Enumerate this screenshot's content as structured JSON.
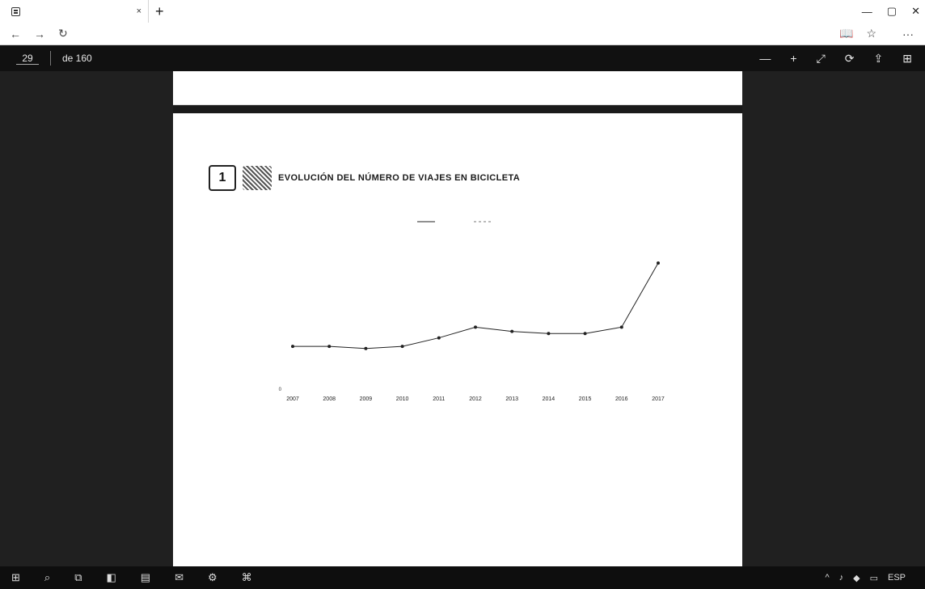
{
  "browser": {
    "tab_title": "",
    "tab_close": "×",
    "new_tab": "+",
    "url": "",
    "window_controls": {
      "minimize": "—",
      "maximize": "▢",
      "close": "✕"
    },
    "nav": {
      "back": "←",
      "forward": "→",
      "refresh": "↻"
    },
    "addr_icons": {
      "reading_view": "📖",
      "favorite": "☆"
    },
    "brand_text": "",
    "menu_dots": "···"
  },
  "pdf_viewer": {
    "current_page": "29",
    "page_total": "de 160",
    "title": "",
    "tools": {
      "zoom_out": "—",
      "zoom_in": "+",
      "fit": "⤢",
      "rotate": "⟳",
      "share": "⇪",
      "save": "⊞"
    }
  },
  "page": {
    "top_mark": "",
    "section_header": "",
    "figure": {
      "badge_label": "",
      "badge_number": "1",
      "title": "EVOLUCIÓN DEL NÚMERO DE VIAJES EN BICICLETA",
      "subtitle": ""
    },
    "source_label": "",
    "source_text": ""
  },
  "chart_data": {
    "type": "line",
    "title": "",
    "xlabel": "",
    "ylabel": "",
    "x": [
      "2007",
      "2008",
      "2009",
      "2010",
      "2011",
      "2012",
      "2013",
      "2014",
      "2015",
      "2016",
      "2017"
    ],
    "ylim": [
      0,
      350000
    ],
    "yticks": [
      "0",
      "",
      "",
      "",
      "",
      "",
      "",
      ""
    ],
    "series": [
      {
        "name": "",
        "color": "#222222",
        "dash": "none",
        "values": [
          100000,
          100000,
          95000,
          100000,
          120000,
          145000,
          135000,
          130000,
          130000,
          145000,
          295000
        ]
      },
      {
        "name": "",
        "color": "#777777",
        "dash": "3,3",
        "values": [
          null,
          null,
          null,
          null,
          null,
          null,
          null,
          null,
          null,
          null,
          null
        ]
      }
    ],
    "data_labels": [
      "",
      "",
      "",
      "",
      "",
      "",
      "",
      "",
      "",
      "",
      ""
    ],
    "grid": false,
    "legend": "top-center"
  },
  "taskbar": {
    "items": [
      "⊞",
      "⌕",
      "⧉",
      "◧",
      "▤",
      "✉",
      "⚙",
      "⌘"
    ],
    "tray": [
      "^",
      "♪",
      "◆",
      "▭",
      "ESP"
    ],
    "time": "",
    "date": ""
  }
}
